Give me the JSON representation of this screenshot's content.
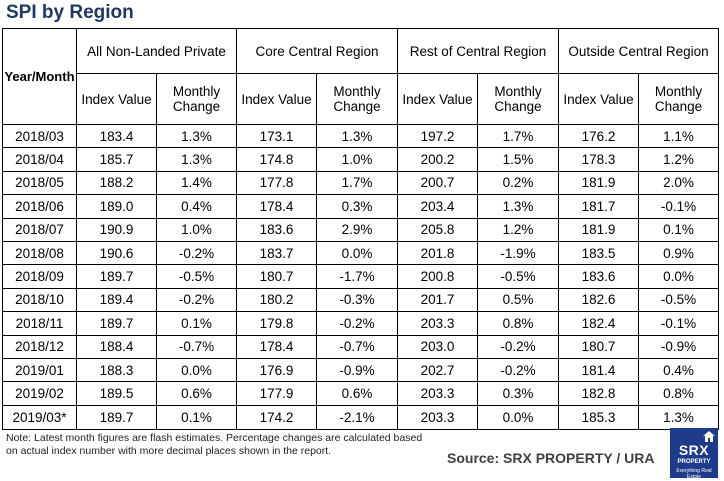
{
  "title": "SPI by Region",
  "table": {
    "corner_label": "Year/Month",
    "regions": [
      "All Non-Landed Private",
      "Core Central Region",
      "Rest of Central Region",
      "Outside Central Region"
    ],
    "subheaders": [
      "Index Value",
      "Monthly Change"
    ],
    "rows": [
      [
        "2018/03",
        "183.4",
        "1.3%",
        "173.1",
        "1.3%",
        "197.2",
        "1.7%",
        "176.2",
        "1.1%"
      ],
      [
        "2018/04",
        "185.7",
        "1.3%",
        "174.8",
        "1.0%",
        "200.2",
        "1.5%",
        "178.3",
        "1.2%"
      ],
      [
        "2018/05",
        "188.2",
        "1.4%",
        "177.8",
        "1.7%",
        "200.7",
        "0.2%",
        "181.9",
        "2.0%"
      ],
      [
        "2018/06",
        "189.0",
        "0.4%",
        "178.4",
        "0.3%",
        "203.4",
        "1.3%",
        "181.7",
        "-0.1%"
      ],
      [
        "2018/07",
        "190.9",
        "1.0%",
        "183.6",
        "2.9%",
        "205.8",
        "1.2%",
        "181.9",
        "0.1%"
      ],
      [
        "2018/08",
        "190.6",
        "-0.2%",
        "183.7",
        "0.0%",
        "201.8",
        "-1.9%",
        "183.5",
        "0.9%"
      ],
      [
        "2018/09",
        "189.7",
        "-0.5%",
        "180.7",
        "-1.7%",
        "200.8",
        "-0.5%",
        "183.6",
        "0.0%"
      ],
      [
        "2018/10",
        "189.4",
        "-0.2%",
        "180.2",
        "-0.3%",
        "201.7",
        "0.5%",
        "182.6",
        "-0.5%"
      ],
      [
        "2018/11",
        "189.7",
        "0.1%",
        "179.8",
        "-0.2%",
        "203.3",
        "0.8%",
        "182.4",
        "-0.1%"
      ],
      [
        "2018/12",
        "188.4",
        "-0.7%",
        "178.4",
        "-0.7%",
        "203.0",
        "-0.2%",
        "180.7",
        "-0.9%"
      ],
      [
        "2019/01",
        "188.3",
        "0.0%",
        "176.9",
        "-0.9%",
        "202.7",
        "-0.2%",
        "181.4",
        "0.4%"
      ],
      [
        "2019/02",
        "189.5",
        "0.6%",
        "177.9",
        "0.6%",
        "203.3",
        "0.3%",
        "182.8",
        "0.8%"
      ],
      [
        "2019/03*",
        "189.7",
        "0.1%",
        "174.2",
        "-2.1%",
        "203.3",
        "0.0%",
        "185.3",
        "1.3%"
      ]
    ]
  },
  "note": "Note: Latest month figures are flash estimates. Percentage changes are calculated based on actual index number with more decimal places shown in the report.",
  "source": "Source:  SRX PROPERTY / URA",
  "logo": {
    "brand": "SRX",
    "line1": "PROPERTY",
    "line2": "Everything Real Estate",
    "icon": "house-icon",
    "color": "#1e3a8a"
  },
  "colors": {
    "title": "#1f3864",
    "source": "#404040"
  }
}
